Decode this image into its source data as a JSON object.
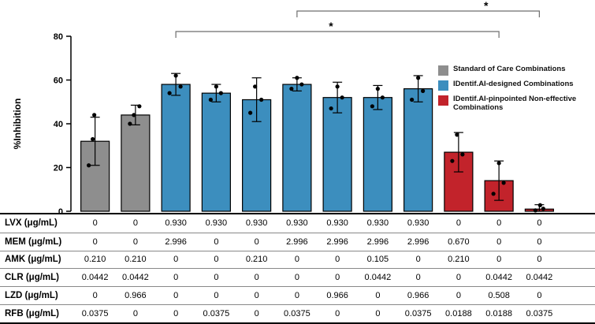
{
  "chart_data": {
    "type": "bar",
    "title": "",
    "ylabel": "%Inhibition",
    "ylim": [
      0,
      80
    ],
    "yticks": [
      0,
      20,
      40,
      60,
      80
    ],
    "grid": false,
    "legend_position": "upper-right",
    "groups": [
      {
        "name": "Standard of Care Combinations",
        "color": "#8E8E8E"
      },
      {
        "name": "IDentif.AI-designed Combinations",
        "color": "#3C8EBE"
      },
      {
        "name": "IDentif.AI-pinpointed Non-effective Combinations",
        "color": "#C2232B"
      }
    ],
    "bars": [
      {
        "group": 0,
        "value": 32,
        "error": 11,
        "points": [
          [
            -8,
            21
          ],
          [
            -3,
            33
          ],
          [
            -1,
            44
          ]
        ]
      },
      {
        "group": 0,
        "value": 44,
        "error": 4.5,
        "points": [
          [
            -7,
            40
          ],
          [
            -2,
            44
          ],
          [
            5,
            48
          ]
        ]
      },
      {
        "group": 1,
        "value": 58,
        "error": 5,
        "points": [
          [
            -8,
            54
          ],
          [
            0,
            62
          ],
          [
            6,
            57
          ]
        ]
      },
      {
        "group": 1,
        "value": 54,
        "error": 4,
        "points": [
          [
            -7,
            51
          ],
          [
            0,
            57
          ],
          [
            6,
            54
          ]
        ]
      },
      {
        "group": 1,
        "value": 51,
        "error": 10,
        "points": [
          [
            -8,
            45
          ],
          [
            -2,
            57
          ],
          [
            6,
            51
          ]
        ]
      },
      {
        "group": 1,
        "value": 58,
        "error": 3,
        "points": [
          [
            -7,
            56
          ],
          [
            0,
            61
          ],
          [
            6,
            58
          ]
        ]
      },
      {
        "group": 1,
        "value": 52,
        "error": 7,
        "points": [
          [
            -8,
            47
          ],
          [
            0,
            57
          ],
          [
            6,
            52
          ]
        ]
      },
      {
        "group": 1,
        "value": 52,
        "error": 5.5,
        "points": [
          [
            -7,
            48
          ],
          [
            0,
            56
          ],
          [
            6,
            52
          ]
        ]
      },
      {
        "group": 1,
        "value": 56,
        "error": 6,
        "points": [
          [
            -8,
            51
          ],
          [
            0,
            61
          ],
          [
            6,
            55
          ]
        ]
      },
      {
        "group": 2,
        "value": 27,
        "error": 9,
        "points": [
          [
            -8,
            23
          ],
          [
            -2,
            35
          ],
          [
            5,
            26
          ]
        ]
      },
      {
        "group": 2,
        "value": 14,
        "error": 9,
        "points": [
          [
            -7,
            8
          ],
          [
            0,
            22
          ],
          [
            6,
            13
          ]
        ]
      },
      {
        "group": 2,
        "value": 1,
        "error": 2,
        "points": [
          [
            -5,
            0.4
          ],
          [
            1,
            2.8
          ],
          [
            5,
            1.2
          ]
        ]
      }
    ],
    "significance": [
      {
        "from_bar": 6,
        "to_bar": 12,
        "label": "*",
        "row": 1
      },
      {
        "from_bar": 3,
        "to_bar": 11,
        "label": "*",
        "row": 2
      }
    ]
  },
  "legend": {
    "items": [
      {
        "label": "Standard of Care Combinations",
        "color": "#8E8E8E"
      },
      {
        "label": "IDentif.AI-designed Combinations",
        "color": "#3C8EBE"
      },
      {
        "label": "IDentif.AI-pinpointed Non-effective Combinations",
        "color": "#C2232B"
      }
    ]
  },
  "table": {
    "rows": [
      {
        "label": "LVX (μg/mL)",
        "values": [
          "0",
          "0",
          "0.930",
          "0.930",
          "0.930",
          "0.930",
          "0.930",
          "0.930",
          "0.930",
          "0",
          "0",
          "0"
        ]
      },
      {
        "label": "MEM (μg/mL)",
        "values": [
          "0",
          "0",
          "2.996",
          "0",
          "0",
          "2.996",
          "2.996",
          "2.996",
          "2.996",
          "0.670",
          "0",
          "0"
        ]
      },
      {
        "label": "AMK (μg/mL)",
        "values": [
          "0.210",
          "0.210",
          "0",
          "0",
          "0.210",
          "0",
          "0",
          "0.105",
          "0",
          "0.210",
          "0",
          "0"
        ]
      },
      {
        "label": "CLR (μg/mL)",
        "values": [
          "0.0442",
          "0.0442",
          "0",
          "0",
          "0",
          "0",
          "0",
          "0.0442",
          "0",
          "0",
          "0.0442",
          "0.0442"
        ]
      },
      {
        "label": "LZD (μg/mL)",
        "values": [
          "0",
          "0.966",
          "0",
          "0",
          "0",
          "0",
          "0.966",
          "0",
          "0.966",
          "0",
          "0.508",
          "0"
        ]
      },
      {
        "label": "RFB (μg/mL)",
        "values": [
          "0.0375",
          "0",
          "0",
          "0.0375",
          "0",
          "0.0375",
          "0",
          "0",
          "0.0375",
          "0.0188",
          "0.0188",
          "0.0375"
        ]
      }
    ]
  }
}
